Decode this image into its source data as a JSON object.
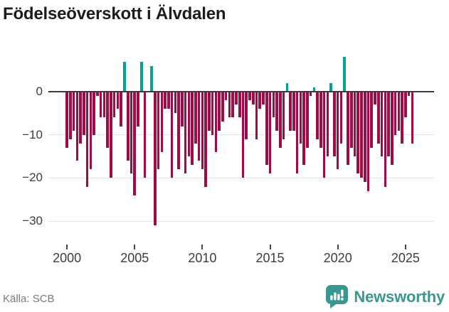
{
  "title": "Födelseöverskott i Älvdalen",
  "source": {
    "label": "Källa: SCB"
  },
  "branding": {
    "name": "Newsworthy",
    "color": "#379891"
  },
  "colors": {
    "negative_bar": "#a00b45",
    "positive_bar": "#00a29a",
    "axis_line": "#3a3a44",
    "gridline": "#e4e4e4",
    "tick_label": "#3d3d3d",
    "source_text": "#7a7a7a"
  },
  "chart_data": {
    "type": "bar",
    "title": "Födelseöverskott i Älvdalen",
    "xlabel": "",
    "ylabel": "",
    "period": "quarterly",
    "start": "2000-Q1",
    "end": "2025-Q3",
    "x_tick_years": [
      2000,
      2005,
      2010,
      2015,
      2020,
      2025
    ],
    "x_tick_labels": [
      "2000",
      "2005",
      "2010",
      "2015",
      "2020",
      "2025"
    ],
    "y_ticks": [
      0,
      -10,
      -20,
      -30
    ],
    "y_tick_labels": [
      "0",
      "−10",
      "−20",
      "−30"
    ],
    "ylim": [
      -34,
      9
    ],
    "grid": true,
    "legend": "none",
    "values": [
      -13,
      -11,
      -9,
      -16,
      -12,
      -10,
      -22,
      -18,
      -10,
      -1,
      -6,
      -6,
      -13,
      -20,
      -6,
      -4,
      -8,
      7,
      -16,
      -19,
      -24,
      -8,
      7,
      -20,
      0,
      6,
      -31,
      -18,
      -14,
      -4,
      -4,
      -20,
      -5,
      -18,
      -8,
      -19,
      -15,
      -17,
      -12,
      -16,
      -18,
      -22,
      -9,
      -10,
      -14,
      -9,
      -7,
      -2,
      -6,
      -6,
      -3,
      -6,
      -20,
      -11,
      -2,
      -3,
      -11,
      -4,
      -3,
      -17,
      -19,
      -6,
      -9,
      -13,
      -11,
      2,
      -9,
      -9,
      -19,
      -12,
      -17,
      -13,
      -1,
      1,
      -11,
      -13,
      -20,
      -15,
      2,
      -15,
      -18,
      -12,
      8,
      -17,
      -13,
      -15,
      -19,
      -20,
      -21,
      -23,
      -13,
      -3,
      -12,
      -15,
      -22,
      -15,
      -17,
      -10,
      -9,
      -12,
      -6,
      -1,
      -12
    ]
  }
}
